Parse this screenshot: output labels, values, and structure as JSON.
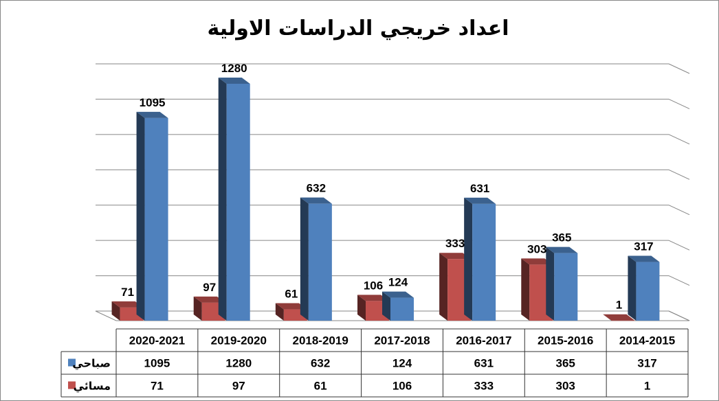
{
  "chart_data": {
    "type": "bar",
    "title": "اعداد خريجي الدراسات الاولية",
    "categories": [
      "2020-2021",
      "2019-2020",
      "2018-2019",
      "2017-2018",
      "2016-2017",
      "2015-2016",
      "2014-2015"
    ],
    "series": [
      {
        "name": "مسائي",
        "values": [
          71,
          97,
          61,
          106,
          333,
          303,
          1
        ],
        "color": "#C0504D"
      },
      {
        "name": "صباحي",
        "values": [
          1095,
          1280,
          632,
          124,
          631,
          365,
          317
        ],
        "color": "#4F81BD"
      }
    ],
    "ylim": [
      0,
      1400
    ],
    "grid": true,
    "data_table": true,
    "table_rows": [
      {
        "label": "صباحي",
        "series_index": 1
      },
      {
        "label": "مسائي",
        "series_index": 0
      }
    ]
  }
}
